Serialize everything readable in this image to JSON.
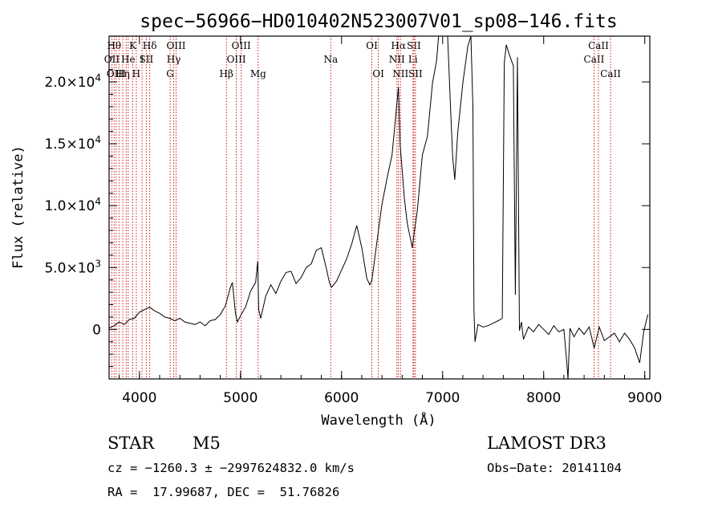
{
  "info": {
    "class_label": "STAR",
    "subclass": "M5",
    "survey": "LAMOST DR3",
    "cz_line": "cz = −1260.3 ± −2997624832.0 km/s",
    "obs_date": "Obs−Date: 20141104",
    "radec": "RA =  17.99687, DEC =  51.76826"
  },
  "chart_data": {
    "type": "line",
    "title": "spec−56966−HD010402N523007V01_sp08−146.fits",
    "xlabel": "Wavelength (Å)",
    "ylabel": "Flux (relative)",
    "xlim": [
      3700,
      9050
    ],
    "ylim": [
      -4000,
      23700
    ],
    "x_ticks": [
      {
        "v": 4000,
        "label": "4000"
      },
      {
        "v": 5000,
        "label": "5000"
      },
      {
        "v": 6000,
        "label": "6000"
      },
      {
        "v": 7000,
        "label": "7000"
      },
      {
        "v": 8000,
        "label": "8000"
      },
      {
        "v": 9000,
        "label": "9000"
      }
    ],
    "y_ticks": [
      {
        "v": 0,
        "mant": "0",
        "exp": ""
      },
      {
        "v": 5000,
        "mant": "5.0×10",
        "exp": "3"
      },
      {
        "v": 10000,
        "mant": "1.0×10",
        "exp": "4"
      },
      {
        "v": 15000,
        "mant": "1.5×10",
        "exp": "4"
      },
      {
        "v": 20000,
        "mant": "2.0×10",
        "exp": "4"
      }
    ],
    "line_color": "#000000",
    "marker_color": "#cc0000",
    "spectral_lines": [
      {
        "w": 3750,
        "label": "Hθ",
        "row": 0
      },
      {
        "w": 3727,
        "label": "OII",
        "row": 1
      },
      {
        "w": 3770,
        "label": "OIII",
        "row": 2
      },
      {
        "w": 3798,
        "label": "",
        "row": -1
      },
      {
        "w": 3835,
        "label": "Hη",
        "row": 2
      },
      {
        "w": 3869,
        "label": "",
        "row": -1
      },
      {
        "w": 3889,
        "label": "He",
        "row": 1
      },
      {
        "w": 3934,
        "label": "K",
        "row": 0
      },
      {
        "w": 3969,
        "label": "H",
        "row": 2
      },
      {
        "w": 4026,
        "label": "I",
        "row": 1
      },
      {
        "w": 4068,
        "label": "SII",
        "row": 1
      },
      {
        "w": 4102,
        "label": "Hδ",
        "row": 0
      },
      {
        "w": 4304,
        "label": "G",
        "row": 2
      },
      {
        "w": 4340,
        "label": "Hγ",
        "row": 1
      },
      {
        "w": 4363,
        "label": "OIII",
        "row": 0
      },
      {
        "w": 4861,
        "label": "Hβ",
        "row": 2
      },
      {
        "w": 4959,
        "label": "OIII",
        "row": 1
      },
      {
        "w": 5007,
        "label": "OIII",
        "row": 0
      },
      {
        "w": 5175,
        "label": "Mg",
        "row": 2
      },
      {
        "w": 5893,
        "label": "Na",
        "row": 1
      },
      {
        "w": 6300,
        "label": "OI",
        "row": 0
      },
      {
        "w": 6364,
        "label": "OI",
        "row": 2
      },
      {
        "w": 6548,
        "label": "NII",
        "row": 1
      },
      {
        "w": 6563,
        "label": "Hα",
        "row": 0
      },
      {
        "w": 6583,
        "label": "NII",
        "row": 2
      },
      {
        "w": 6707,
        "label": "Li",
        "row": 1
      },
      {
        "w": 6716,
        "label": "SII",
        "row": 0
      },
      {
        "w": 6731,
        "label": "SII",
        "row": 2
      },
      {
        "w": 8498,
        "label": "CaII",
        "row": 1
      },
      {
        "w": 8542,
        "label": "CaII",
        "row": 0
      },
      {
        "w": 8662,
        "label": "CaII",
        "row": 2
      }
    ],
    "spectrum": {
      "x": [
        3700,
        3750,
        3800,
        3850,
        3900,
        3950,
        4000,
        4050,
        4100,
        4150,
        4200,
        4250,
        4300,
        4350,
        4400,
        4450,
        4500,
        4550,
        4600,
        4650,
        4700,
        4750,
        4800,
        4850,
        4880,
        4900,
        4920,
        4950,
        4970,
        5000,
        5050,
        5100,
        5150,
        5170,
        5180,
        5200,
        5250,
        5300,
        5350,
        5400,
        5450,
        5500,
        5550,
        5600,
        5650,
        5700,
        5750,
        5800,
        5850,
        5880,
        5900,
        5950,
        6000,
        6050,
        6100,
        6150,
        6200,
        6250,
        6280,
        6300,
        6350,
        6400,
        6450,
        6500,
        6540,
        6563,
        6580,
        6600,
        6620,
        6650,
        6680,
        6700,
        6720,
        6750,
        6800,
        6850,
        6900,
        6940,
        6960,
        7000,
        7050,
        7080,
        7100,
        7120,
        7150,
        7200,
        7250,
        7280,
        7300,
        7310,
        7320,
        7350,
        7400,
        7450,
        7500,
        7550,
        7590,
        7610,
        7630,
        7660,
        7700,
        7720,
        7740,
        7760,
        7780,
        7800,
        7850,
        7900,
        7950,
        8000,
        8050,
        8100,
        8150,
        8200,
        8230,
        8240,
        8260,
        8300,
        8350,
        8400,
        8450,
        8500,
        8550,
        8600,
        8650,
        8700,
        8750,
        8800,
        8850,
        8900,
        8950,
        8990,
        9030
      ],
      "y": [
        100,
        300,
        600,
        400,
        800,
        900,
        1400,
        1600,
        1800,
        1500,
        1300,
        1000,
        900,
        700,
        900,
        600,
        500,
        400,
        600,
        300,
        700,
        800,
        1200,
        1900,
        2800,
        3400,
        3800,
        1300,
        600,
        1100,
        1800,
        3100,
        3800,
        5500,
        1600,
        900,
        2700,
        3600,
        2900,
        3900,
        4600,
        4700,
        3700,
        4200,
        5000,
        5300,
        6400,
        6600,
        4900,
        3800,
        3400,
        3900,
        4800,
        5700,
        6900,
        8400,
        6600,
        4100,
        3600,
        4000,
        7100,
        10100,
        12200,
        14100,
        17600,
        19600,
        14900,
        12900,
        10700,
        8600,
        7400,
        6600,
        7900,
        9600,
        14100,
        15600,
        19900,
        21700,
        23700,
        23700,
        23700,
        17600,
        13900,
        12100,
        15900,
        19900,
        22900,
        23700,
        18000,
        1600,
        -1000,
        400,
        200,
        300,
        500,
        700,
        900,
        21500,
        23000,
        22200,
        21300,
        2800,
        22000,
        -100,
        600,
        -800,
        200,
        -200,
        400,
        0,
        -400,
        300,
        -200,
        0,
        -2800,
        -4000,
        100,
        -600,
        100,
        -400,
        200,
        -1500,
        200,
        -900,
        -600,
        -300,
        -1000,
        -300,
        -800,
        -1500,
        -2700,
        -200,
        1200
      ]
    }
  }
}
